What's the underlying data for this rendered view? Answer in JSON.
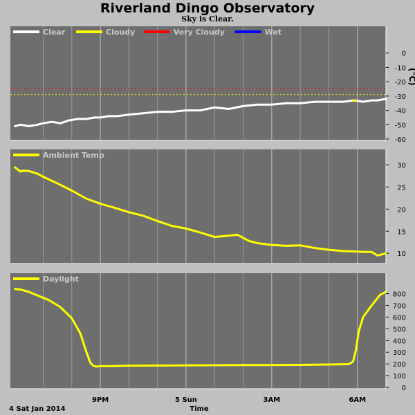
{
  "header": {
    "title": "Riverland Dingo Observatory",
    "subtitle": "Sky is Clear."
  },
  "footer": {
    "date_label": "4 Sat Jan 2014",
    "time_label": "Time"
  },
  "colors": {
    "background": "#c0c0c0",
    "plot_bg": "#6e6e6e",
    "grid": "#9a9a9a",
    "clear": "#ffffff",
    "cloudy": "#ffff00",
    "very_cloudy": "#ff0000",
    "wet": "#0000ff",
    "ambient": "#ffff00",
    "daylight": "#ffff00"
  },
  "chart_data": [
    {
      "type": "line",
      "name": "sky-temperature",
      "legend": [
        {
          "label": "Clear",
          "color": "#ffffff"
        },
        {
          "label": "Cloudy",
          "color": "#ffff00"
        },
        {
          "label": "Very Cloudy",
          "color": "#ff0000"
        },
        {
          "label": "Wet",
          "color": "#0000ff"
        }
      ],
      "unit": "(°C)",
      "ylim": [
        -60,
        10
      ],
      "yticks": [
        0,
        -10,
        -20,
        -30,
        -40,
        -50,
        -60
      ],
      "thresholds": [
        {
          "label": "Very Cloudy",
          "value": -25,
          "color": "#ff0000",
          "dashed": true
        },
        {
          "label": "Cloudy",
          "value": -29,
          "color": "#ffff00",
          "dashed": true
        }
      ],
      "series": [
        {
          "name": "Clear",
          "color": "#ffffff",
          "x": [
            18.0,
            18.2,
            18.5,
            18.8,
            19.0,
            19.3,
            19.6,
            19.9,
            20.2,
            20.5,
            20.8,
            21.0,
            21.3,
            21.6,
            22.0,
            22.5,
            23.0,
            23.5,
            24.0,
            24.5,
            25.0,
            25.5,
            26.0,
            26.5,
            27.0,
            27.5,
            28.0,
            28.5,
            29.0,
            29.5,
            29.9,
            30.2,
            30.5,
            30.7,
            31.0
          ],
          "values": [
            -51,
            -50,
            -51,
            -50,
            -49,
            -48,
            -49,
            -47,
            -46,
            -46,
            -45,
            -45,
            -44,
            -44,
            -43,
            -42,
            -41,
            -41,
            -40,
            -40,
            -38,
            -39,
            -37,
            -36,
            -36,
            -35,
            -35,
            -34,
            -34,
            -34,
            -33,
            -34,
            -33,
            -33,
            -32
          ]
        },
        {
          "name": "Cloudy",
          "color": "#ffff00",
          "x": [
            29.85,
            29.95
          ],
          "values": [
            -33.5,
            -33
          ]
        }
      ]
    },
    {
      "type": "line",
      "name": "ambient-temperature",
      "legend": [
        {
          "label": "Ambient Temp",
          "color": "#ffff00"
        }
      ],
      "ylim": [
        8,
        31
      ],
      "yticks": [
        30,
        25,
        20,
        15,
        10
      ],
      "series": [
        {
          "name": "Ambient Temp",
          "color": "#ffff00",
          "x": [
            18.0,
            18.1,
            18.2,
            18.3,
            18.5,
            18.8,
            19.0,
            19.5,
            20.0,
            20.5,
            21.0,
            21.5,
            22.0,
            22.5,
            23.0,
            23.5,
            24.0,
            24.5,
            25.0,
            25.5,
            25.8,
            26.0,
            26.2,
            26.5,
            27.0,
            27.5,
            28.0,
            28.5,
            29.0,
            29.5,
            30.0,
            30.2,
            30.5,
            30.7,
            31.0
          ],
          "values": [
            29.5,
            29,
            28.5,
            28.7,
            28.6,
            28,
            27.3,
            25.8,
            24.2,
            22.4,
            21.2,
            20.3,
            19.3,
            18.5,
            17.3,
            16.2,
            15.6,
            14.7,
            13.7,
            14.0,
            14.2,
            13.5,
            12.8,
            12.3,
            11.9,
            11.7,
            11.8,
            11.2,
            10.8,
            10.5,
            10.4,
            10.3,
            10.3,
            9.5,
            10.0
          ]
        }
      ]
    },
    {
      "type": "line",
      "name": "daylight",
      "legend": [
        {
          "label": "Daylight",
          "color": "#ffff00"
        }
      ],
      "ylim": [
        0,
        880
      ],
      "yticks": [
        800,
        700,
        600,
        500,
        400,
        300,
        200,
        100,
        0
      ],
      "series": [
        {
          "name": "Daylight",
          "color": "#ffff00",
          "x": [
            18.0,
            18.2,
            18.5,
            18.8,
            19.2,
            19.6,
            20.0,
            20.3,
            20.5,
            20.65,
            20.75,
            20.85,
            21.0,
            21.5,
            22.0,
            24.0,
            26.0,
            28.0,
            29.0,
            29.7,
            29.85,
            29.95,
            30.05,
            30.2,
            30.5,
            30.8,
            31.0
          ],
          "values": [
            840,
            835,
            815,
            785,
            745,
            685,
            590,
            460,
            310,
            210,
            185,
            178,
            180,
            182,
            185,
            187,
            190,
            192,
            195,
            198,
            220,
            320,
            480,
            600,
            700,
            790,
            815
          ]
        }
      ]
    }
  ],
  "x_axis": {
    "xlim": [
      17.85,
      31.0
    ],
    "ticks": [
      {
        "x": 21,
        "label": "9PM"
      },
      {
        "x": 24,
        "label": "5 Sun"
      },
      {
        "x": 27,
        "label": "3AM"
      },
      {
        "x": 30,
        "label": "6AM"
      }
    ],
    "grid": [
      19,
      20,
      21,
      22,
      23,
      24,
      25,
      26,
      27,
      28,
      29,
      30
    ]
  }
}
